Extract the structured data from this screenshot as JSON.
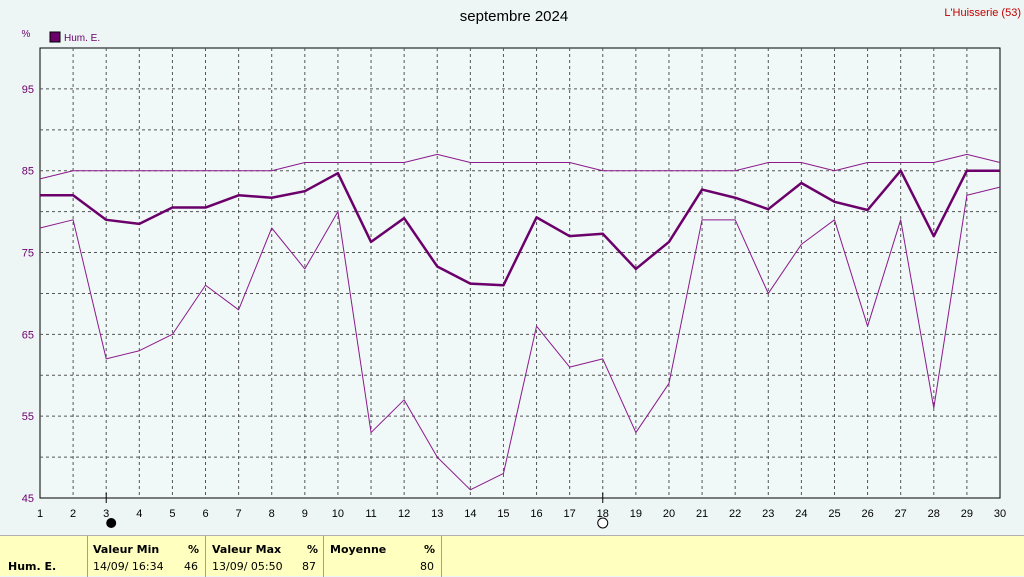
{
  "station": "L'Huisserie (53)",
  "chart_data": {
    "type": "line",
    "title": "septembre 2024",
    "ylabel": "%",
    "ylim": [
      45,
      100
    ],
    "yticks": [
      45,
      55,
      65,
      75,
      85,
      95
    ],
    "x": [
      1,
      2,
      3,
      4,
      5,
      6,
      7,
      8,
      9,
      10,
      11,
      12,
      13,
      14,
      15,
      16,
      17,
      18,
      19,
      20,
      21,
      22,
      23,
      24,
      25,
      26,
      27,
      28,
      29,
      30
    ],
    "grid": true,
    "legend_position": "top-left",
    "moon_phases": [
      {
        "day": 3,
        "phase": "new-moon"
      },
      {
        "day": 18,
        "phase": "full-moon"
      }
    ],
    "series": [
      {
        "name": "Hum. E.",
        "role": "mean",
        "color": "#6b006b",
        "values": [
          82,
          82,
          79,
          78.5,
          80.5,
          80.5,
          82,
          81.7,
          82.5,
          84.7,
          76.3,
          79.2,
          73.3,
          71.2,
          71,
          79.3,
          77,
          77.3,
          73,
          76.3,
          82.7,
          81.7,
          80.3,
          83.5,
          81.2,
          80.2,
          85,
          77,
          85,
          85
        ]
      },
      {
        "name": "",
        "role": "max",
        "color": "#8b1a8b",
        "values": [
          84,
          85,
          85,
          85,
          85,
          85,
          85,
          85,
          86,
          86,
          86,
          86,
          87,
          86,
          86,
          86,
          86,
          85,
          85,
          85,
          85,
          85,
          86,
          86,
          85,
          86,
          86,
          86,
          87,
          86
        ]
      },
      {
        "name": "",
        "role": "min",
        "color": "#8b1a8b",
        "values": [
          78,
          79,
          62,
          63,
          65,
          71,
          68,
          78,
          73,
          80,
          53,
          57,
          50,
          46,
          48,
          66,
          61,
          62,
          53,
          59,
          79,
          79,
          70,
          76,
          79,
          66,
          79,
          56,
          82,
          83
        ]
      }
    ]
  },
  "summary": {
    "row_label": "Hum. E.",
    "min_header": "Valeur Min",
    "min_unit": "%",
    "min_date": "14/09/  16:34",
    "min_value": "46",
    "max_header": "Valeur Max",
    "max_unit": "%",
    "max_date": "13/09/  05:50",
    "max_value": "87",
    "avg_header": "Moyenne",
    "avg_unit": "%",
    "avg_value": "80"
  }
}
